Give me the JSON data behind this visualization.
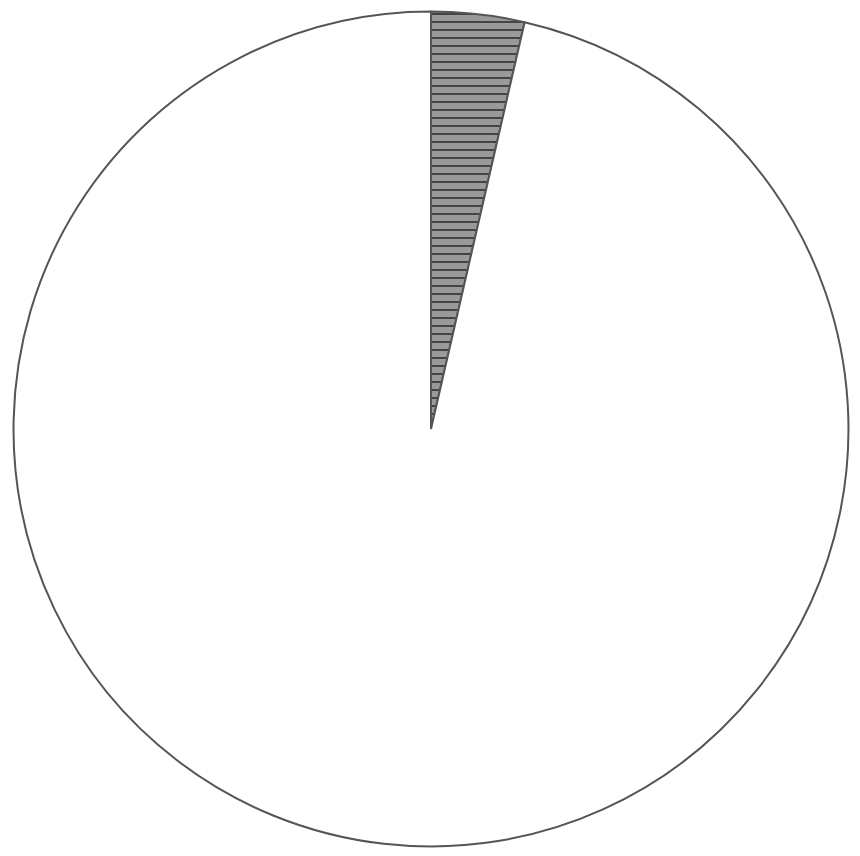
{
  "chart_data": {
    "type": "pie",
    "categories": [
      null,
      null
    ],
    "values": [
      3.6,
      96.4
    ],
    "colors": [
      "#9a9a9a",
      "#ffffff"
    ]
  }
}
